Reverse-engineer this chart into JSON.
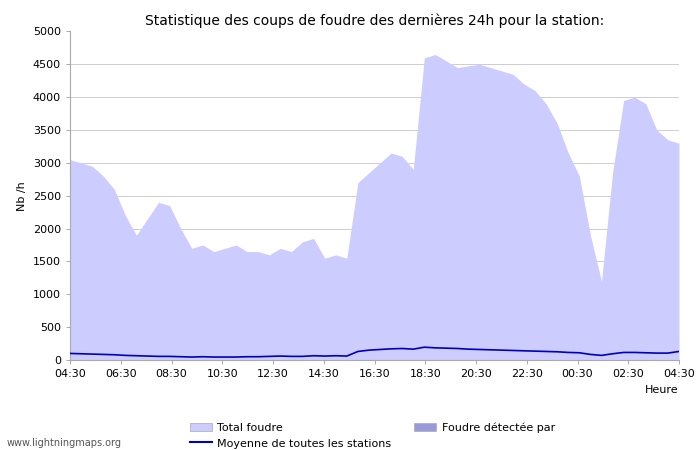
{
  "title": "Statistique des coups de foudre des dernières 24h pour la station:",
  "xlabel": "Heure",
  "ylabel": "Nb /h",
  "ylim": [
    0,
    5000
  ],
  "yticks": [
    0,
    500,
    1000,
    1500,
    2000,
    2500,
    3000,
    3500,
    4000,
    4500,
    5000
  ],
  "xtick_labels": [
    "04:30",
    "06:30",
    "08:30",
    "10:30",
    "12:30",
    "14:30",
    "16:30",
    "18:30",
    "20:30",
    "22:30",
    "00:30",
    "02:30",
    "04:30"
  ],
  "background_color": "#ffffff",
  "plot_bg_color": "#ffffff",
  "fill_color_total": "#ccccff",
  "fill_color_detected": "#9999dd",
  "line_color_moyenne": "#0000bb",
  "watermark": "www.lightningmaps.org",
  "total_foudre": [
    3050,
    3000,
    2950,
    2800,
    2600,
    2200,
    1900,
    2150,
    2400,
    2350,
    2000,
    1700,
    1750,
    1650,
    1700,
    1750,
    1650,
    1650,
    1600,
    1700,
    1650,
    1800,
    1850,
    1550,
    1600,
    1550,
    2700,
    2850,
    3000,
    3150,
    3100,
    2900,
    4600,
    4650,
    4550,
    4450,
    4480,
    4500,
    4450,
    4400,
    4350,
    4200,
    4100,
    3900,
    3600,
    3150,
    2800,
    1900,
    1200,
    2850,
    3950,
    4000,
    3900,
    3500,
    3350,
    3300
  ],
  "moyenne": [
    100,
    95,
    90,
    85,
    80,
    70,
    65,
    60,
    55,
    55,
    50,
    45,
    50,
    45,
    45,
    45,
    50,
    50,
    55,
    60,
    55,
    55,
    65,
    60,
    65,
    60,
    130,
    150,
    160,
    170,
    175,
    165,
    195,
    185,
    180,
    175,
    165,
    160,
    155,
    150,
    145,
    140,
    135,
    130,
    125,
    115,
    110,
    85,
    70,
    95,
    115,
    115,
    110,
    105,
    105,
    130
  ]
}
